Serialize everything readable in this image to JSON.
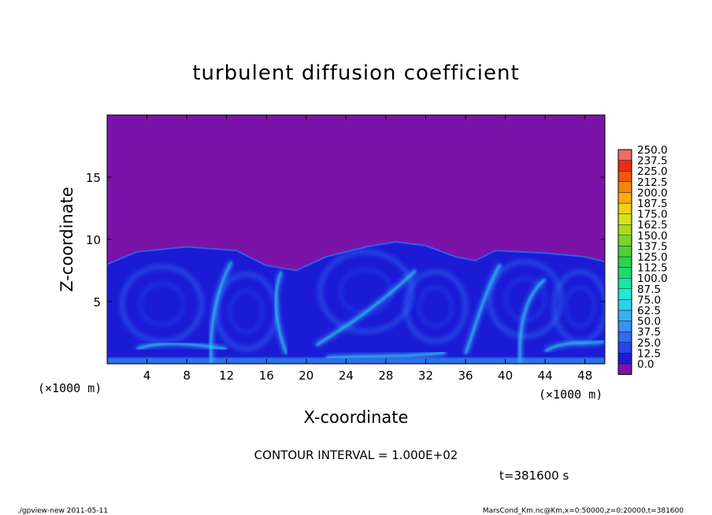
{
  "chart_data": {
    "type": "heatmap",
    "title": "turbulent diffusion coefficient",
    "xlabel": "X-coordinate",
    "ylabel": "Z-coordinate",
    "x_unit": "(×1000 m)",
    "y_unit": "(×1000 m)",
    "xlim": [
      0,
      50
    ],
    "ylim": [
      0,
      20
    ],
    "x_ticks": [
      4,
      8,
      12,
      16,
      20,
      24,
      28,
      32,
      36,
      40,
      44,
      48
    ],
    "y_ticks": [
      5,
      10,
      15
    ],
    "colorbar": {
      "levels": [
        "0.0",
        "12.5",
        "25.0",
        "37.5",
        "50.0",
        "62.5",
        "75.0",
        "87.5",
        "100.0",
        "112.5",
        "125.0",
        "137.5",
        "150.0",
        "162.5",
        "175.0",
        "187.5",
        "200.0",
        "212.5",
        "225.0",
        "237.5",
        "250.0"
      ],
      "colors": [
        "#1b1bd6",
        "#2446e8",
        "#2f6cf0",
        "#3a8ff3",
        "#39b0f2",
        "#2fd0ee",
        "#22e6d6",
        "#19e6a8",
        "#1cdc6e",
        "#2ad44c",
        "#4cd232",
        "#7ad42a",
        "#a8d822",
        "#d8e01c",
        "#f0d014",
        "#f6ac10",
        "#f4840e",
        "#f0560e",
        "#ec2c18",
        "#f06a6a"
      ],
      "background_color": "#7b13a8"
    },
    "structure": {
      "background_value": "0.0",
      "boundary_layer_top_km": [
        8.0,
        9.0,
        9.4,
        9.1,
        7.9,
        7.5,
        8.6,
        9.4,
        9.8,
        9.5,
        8.6,
        8.3,
        9.1,
        8.9,
        8.6,
        8.2
      ],
      "boundary_layer_x_km": [
        0,
        3,
        8,
        13,
        16,
        19,
        22,
        26,
        29,
        32,
        35,
        37,
        39,
        44,
        48,
        50
      ]
    },
    "annotations": {
      "contour_interval": "CONTOUR INTERVAL = 1.000E+02",
      "time": "t=381600 s"
    }
  },
  "footer": {
    "left": "./gpview-new   2011-05-11",
    "right": "MarsCond_Km.nc@Km,x=0:50000,z=0:20000,t=381600"
  }
}
